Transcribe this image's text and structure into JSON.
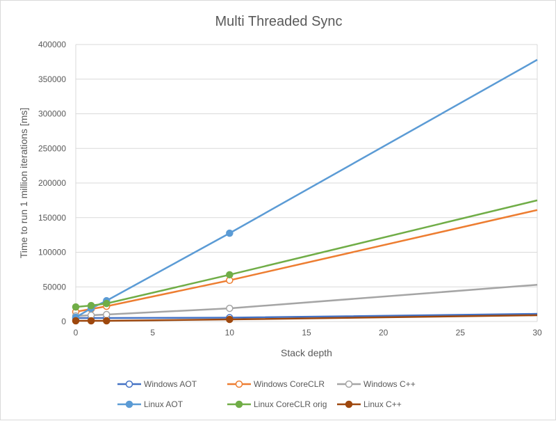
{
  "chart_data": {
    "type": "line",
    "title": "Multi Threaded Sync",
    "xlabel": "Stack depth",
    "ylabel": "Time to run 1 million iterations [ms]",
    "xlim": [
      0,
      30
    ],
    "ylim": [
      0,
      400000
    ],
    "xticks": [
      0,
      5,
      10,
      15,
      20,
      25,
      30
    ],
    "yticks": [
      0,
      50000,
      100000,
      150000,
      200000,
      250000,
      300000,
      350000,
      400000
    ],
    "grid": "horizontal",
    "legend_placement": "bottom",
    "x": [
      0,
      1,
      2,
      10,
      30
    ],
    "series": [
      {
        "name": "Windows AOT",
        "color": "#4472c4",
        "marker": "hollow",
        "values": [
          5000,
          5000,
          5000,
          5500,
          11000
        ]
      },
      {
        "name": "Windows CoreCLR",
        "color": "#ed7d31",
        "marker": "hollow",
        "values": [
          14000,
          18000,
          22000,
          59500,
          161000
        ]
      },
      {
        "name": "Windows C++",
        "color": "#a5a5a5",
        "marker": "hollow",
        "values": [
          8000,
          9000,
          10000,
          19000,
          53000
        ]
      },
      {
        "name": "Linux AOT",
        "color": "#5b9bd5",
        "marker": "filled",
        "values": [
          6000,
          19000,
          30000,
          127500,
          378000
        ]
      },
      {
        "name": "Linux CoreCLR orig",
        "color": "#70ad47",
        "marker": "filled",
        "values": [
          21000,
          23000,
          26000,
          67500,
          175000
        ]
      },
      {
        "name": "Linux C++",
        "color": "#9e480e",
        "marker": "filled",
        "values": [
          1000,
          1000,
          1000,
          3000,
          9000
        ]
      }
    ]
  }
}
